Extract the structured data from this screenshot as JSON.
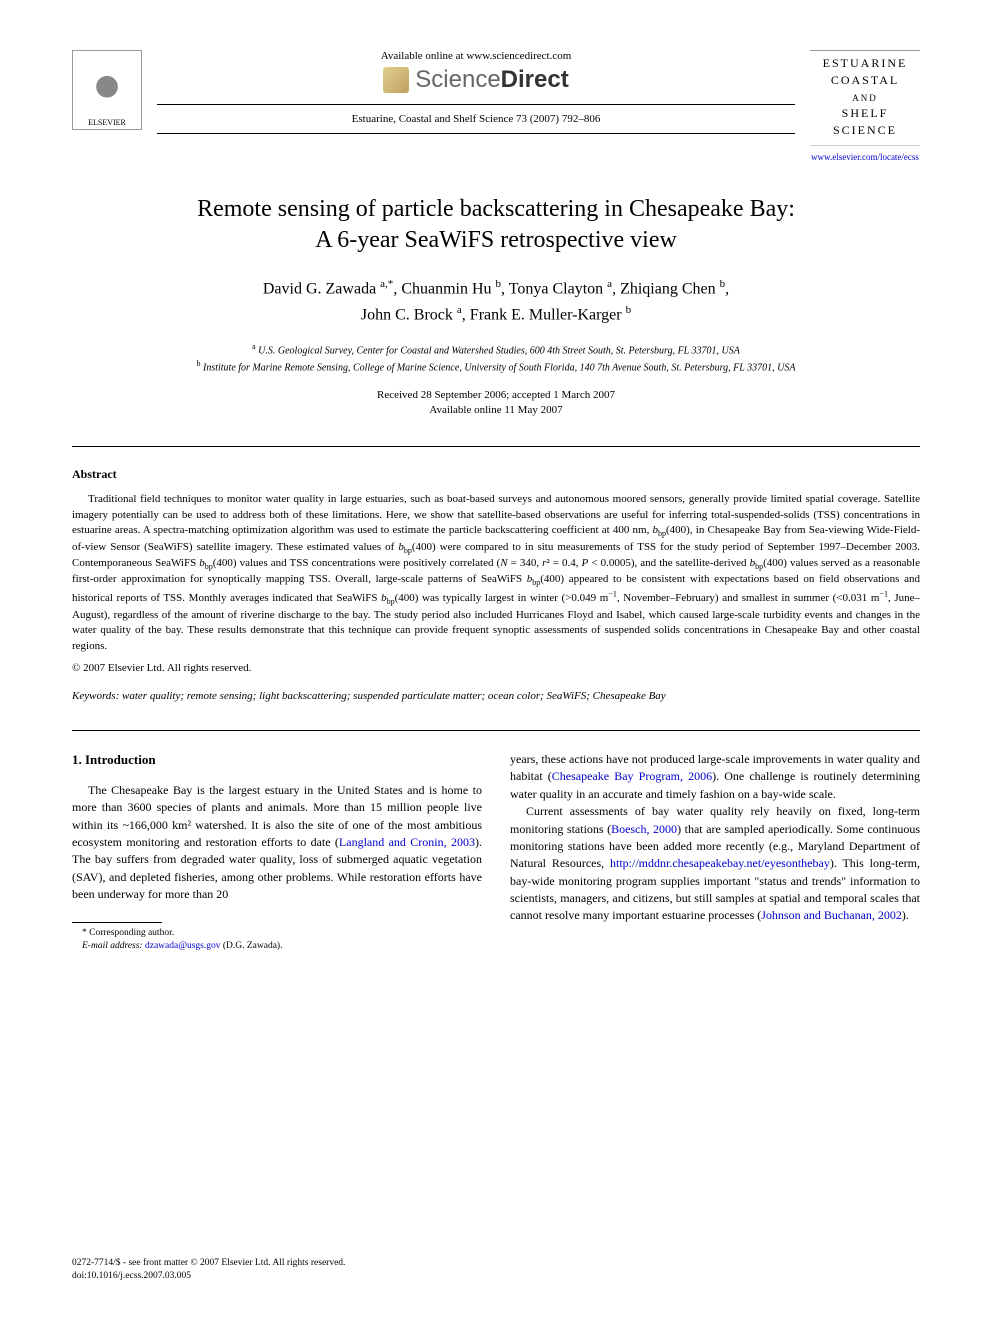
{
  "header": {
    "available_online": "Available online at www.sciencedirect.com",
    "sciencedirect_light": "Science",
    "sciencedirect_bold": "Direct",
    "elsevier_label": "ELSEVIER",
    "journal_ref": "Estuarine, Coastal and Shelf Science 73 (2007) 792–806",
    "journal_name_line1": "ESTUARINE",
    "journal_name_line2": "COASTAL",
    "journal_name_and": "AND",
    "journal_name_line3": "SHELF SCIENCE",
    "journal_link": "www.elsevier.com/locate/ecss"
  },
  "title_line1": "Remote sensing of particle backscattering in Chesapeake Bay:",
  "title_line2": "A 6-year SeaWiFS retrospective view",
  "authors": {
    "a1_name": "David G. Zawada",
    "a1_sup": "a,*",
    "a2_name": "Chuanmin Hu",
    "a2_sup": "b",
    "a3_name": "Tonya Clayton",
    "a3_sup": "a",
    "a4_name": "Zhiqiang Chen",
    "a4_sup": "b",
    "a5_name": "John C. Brock",
    "a5_sup": "a",
    "a6_name": "Frank E. Muller-Karger",
    "a6_sup": "b"
  },
  "affiliations": {
    "a_sup": "a",
    "a_text": "U.S. Geological Survey, Center for Coastal and Watershed Studies, 600 4th Street South, St. Petersburg, FL 33701, USA",
    "b_sup": "b",
    "b_text": "Institute for Marine Remote Sensing, College of Marine Science, University of South Florida, 140 7th Avenue South, St. Petersburg, FL 33701, USA"
  },
  "dates": {
    "line1": "Received 28 September 2006; accepted 1 March 2007",
    "line2": "Available online 11 May 2007"
  },
  "abstract_heading": "Abstract",
  "abstract_body": "Traditional field techniques to monitor water quality in large estuaries, such as boat-based surveys and autonomous moored sensors, generally provide limited spatial coverage. Satellite imagery potentially can be used to address both of these limitations. Here, we show that satellite-based observations are useful for inferring total-suspended-solids (TSS) concentrations in estuarine areas. A spectra-matching optimization algorithm was used to estimate the particle backscattering coefficient at 400 nm, bbp(400), in Chesapeake Bay from Sea-viewing Wide-Field-of-view Sensor (SeaWiFS) satellite imagery. These estimated values of bbp(400) were compared to in situ measurements of TSS for the study period of September 1997–December 2003. Contemporaneous SeaWiFS bbp(400) values and TSS concentrations were positively correlated (N = 340, r² = 0.4, P < 0.0005), and the satellite-derived bbp(400) values served as a reasonable first-order approximation for synoptically mapping TSS. Overall, large-scale patterns of SeaWiFS bbp(400) appeared to be consistent with expectations based on field observations and historical reports of TSS. Monthly averages indicated that SeaWiFS bbp(400) was typically largest in winter (>0.049 m⁻¹, November–February) and smallest in summer (<0.031 m⁻¹, June–August), regardless of the amount of riverine discharge to the bay. The study period also included Hurricanes Floyd and Isabel, which caused large-scale turbidity events and changes in the water quality of the bay. These results demonstrate that this technique can provide frequent synoptic assessments of suspended solids concentrations in Chesapeake Bay and other coastal regions.",
  "copyright": "© 2007 Elsevier Ltd. All rights reserved.",
  "keywords_label": "Keywords:",
  "keywords_value": "water quality; remote sensing; light backscattering; suspended particulate matter; ocean color; SeaWiFS; Chesapeake Bay",
  "section1_heading": "1. Introduction",
  "col1_p1_a": "The Chesapeake Bay is the largest estuary in the United States and is home to more than 3600 species of plants and animals. More than 15 million people live within its ~166,000 km² watershed. It is also the site of one of the most ambitious ecosystem monitoring and restoration efforts to date (",
  "col1_p1_link": "Langland and Cronin, 2003",
  "col1_p1_b": "). The bay suffers from degraded water quality, loss of submerged aquatic vegetation (SAV), and depleted fisheries, among other problems. While restoration efforts have been underway for more than 20",
  "col2_p1_a": "years, these actions have not produced large-scale improvements in water quality and habitat (",
  "col2_p1_link": "Chesapeake Bay Program, 2006",
  "col2_p1_b": "). One challenge is routinely determining water quality in an accurate and timely fashion on a bay-wide scale.",
  "col2_p2_a": "Current assessments of bay water quality rely heavily on fixed, long-term monitoring stations (",
  "col2_p2_link1": "Boesch, 2000",
  "col2_p2_b": ") that are sampled aperiodically. Some continuous monitoring stations have been added more recently (e.g., Maryland Department of Natural Resources, ",
  "col2_p2_link2": "http://mddnr.chesapeakebay.net/eyesonthebay",
  "col2_p2_c": "). This long-term, bay-wide monitoring program supplies important \"status and trends\" information to scientists, managers, and citizens, but still samples at spatial and temporal scales that cannot resolve many important estuarine processes (",
  "col2_p2_link3": "Johnson and Buchanan, 2002",
  "col2_p2_d": ").",
  "footnote": {
    "corresponding": "* Corresponding author.",
    "email_label": "E-mail address:",
    "email": "dzawada@usgs.gov",
    "email_author": "(D.G. Zawada)."
  },
  "footer": {
    "line1": "0272-7714/$ - see front matter © 2007 Elsevier Ltd. All rights reserved.",
    "line2": "doi:10.1016/j.ecss.2007.03.005"
  }
}
